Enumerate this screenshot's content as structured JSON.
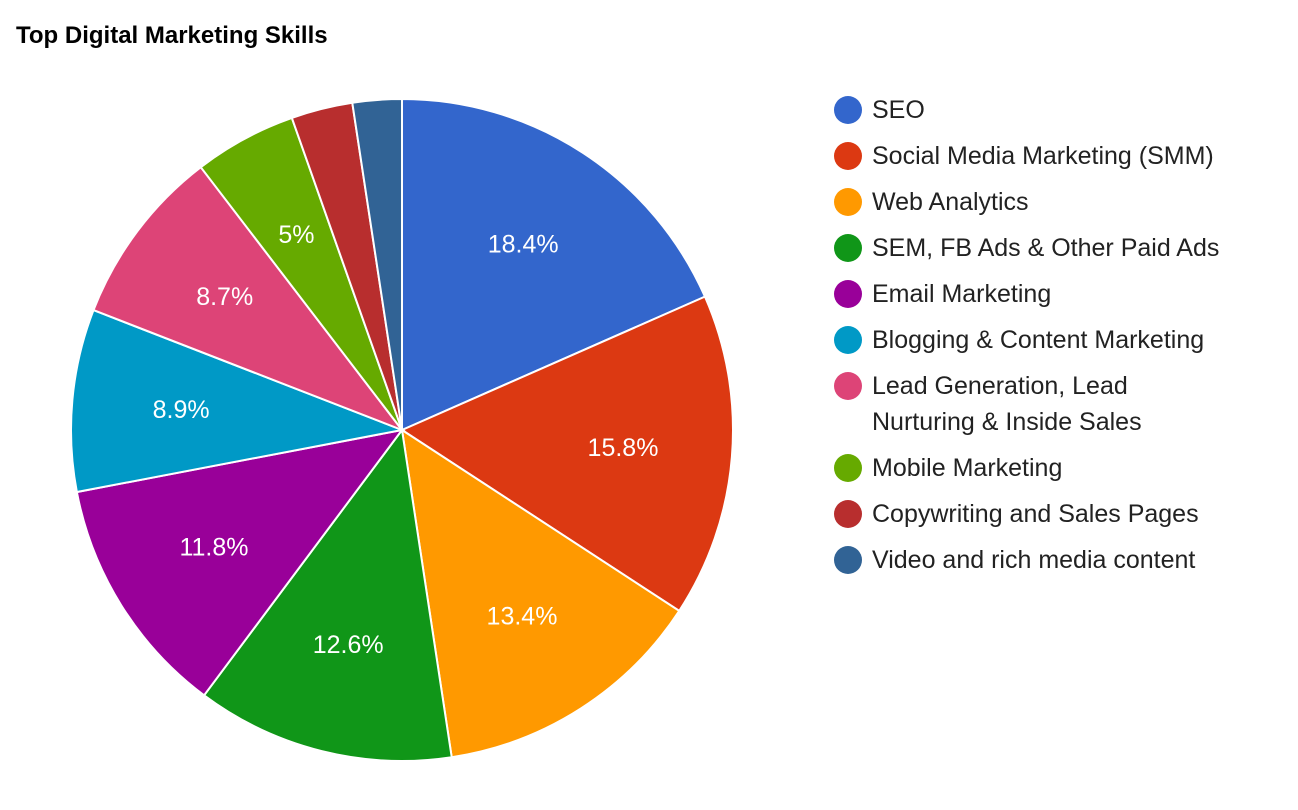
{
  "chart_data": {
    "type": "pie",
    "title": "Top Digital Marketing Skills",
    "legend_position": "right",
    "slices": [
      {
        "name": "SEO",
        "legend_lines": [
          "SEO"
        ],
        "value": 18.4,
        "label": "18.4%",
        "color": "#3366cc"
      },
      {
        "name": "Social Media Marketing (SMM)",
        "legend_lines": [
          "Social Media Marketing (SMM)"
        ],
        "value": 15.8,
        "label": "15.8%",
        "color": "#dc3912"
      },
      {
        "name": "Web Analytics",
        "legend_lines": [
          "Web Analytics"
        ],
        "value": 13.4,
        "label": "13.4%",
        "color": "#ff9900"
      },
      {
        "name": "SEM, FB Ads & Other Paid Ads",
        "legend_lines": [
          "SEM, FB Ads & Other Paid Ads"
        ],
        "value": 12.6,
        "label": "12.6%",
        "color": "#109618"
      },
      {
        "name": "Email Marketing",
        "legend_lines": [
          "Email Marketing"
        ],
        "value": 11.8,
        "label": "11.8%",
        "color": "#990099"
      },
      {
        "name": "Blogging & Content Marketing",
        "legend_lines": [
          "Blogging & Content Marketing"
        ],
        "value": 8.9,
        "label": "8.9%",
        "color": "#0099c6"
      },
      {
        "name": "Lead Generation, Lead Nurturing & Inside Sales",
        "legend_lines": [
          "Lead Generation, Lead",
          "Nurturing & Inside Sales"
        ],
        "value": 8.7,
        "label": "8.7%",
        "color": "#dd4477"
      },
      {
        "name": "Mobile Marketing",
        "legend_lines": [
          "Mobile Marketing"
        ],
        "value": 5.0,
        "label": "5%",
        "color": "#66aa00"
      },
      {
        "name": "Copywriting and Sales Pages",
        "legend_lines": [
          "Copywriting and Sales Pages"
        ],
        "value": 3.0,
        "label": "",
        "color": "#b82e2e"
      },
      {
        "name": "Video and rich media content",
        "legend_lines": [
          "Video and rich media content"
        ],
        "value": 2.4,
        "label": "",
        "color": "#316395"
      }
    ]
  }
}
